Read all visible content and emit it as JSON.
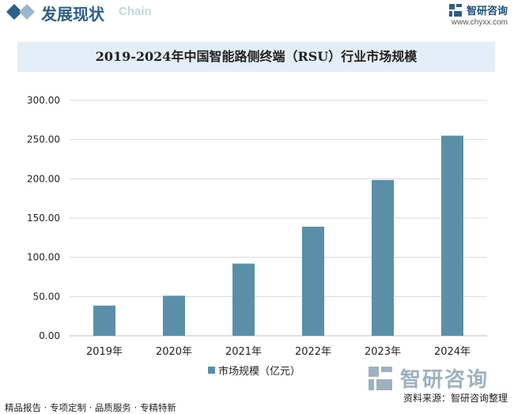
{
  "header": {
    "section_title": "发展现状",
    "section_sub": "Chain",
    "brand_name": "智研咨询",
    "brand_url": "www.chyxx.com"
  },
  "colors": {
    "bar": "#5b8fa8",
    "accent": "#2e5f86",
    "grid": "#d9d9d9",
    "title_bar": "#e4eef6"
  },
  "chart_data": {
    "type": "bar",
    "title": "2019-2024年中国智能路侧终端（RSU）行业市场规模",
    "categories": [
      "2019年",
      "2020年",
      "2021年",
      "2022年",
      "2023年",
      "2024年"
    ],
    "series": [
      {
        "name": "市场规模（亿元）",
        "values": [
          38.5,
          51.0,
          92.0,
          139.0,
          198.5,
          255.0
        ]
      }
    ],
    "y_ticks": [
      "0.00",
      "50.00",
      "100.00",
      "150.00",
      "200.00",
      "250.00",
      "300.00"
    ],
    "ylim": [
      0,
      300
    ],
    "grid": true,
    "legend_position": "bottom-center"
  },
  "footer": {
    "left": "精品报告 · 专项定制 · 品质服务 · 专精特新",
    "right": "资料来源：智研咨询整理",
    "logo_text": "智研咨询"
  }
}
